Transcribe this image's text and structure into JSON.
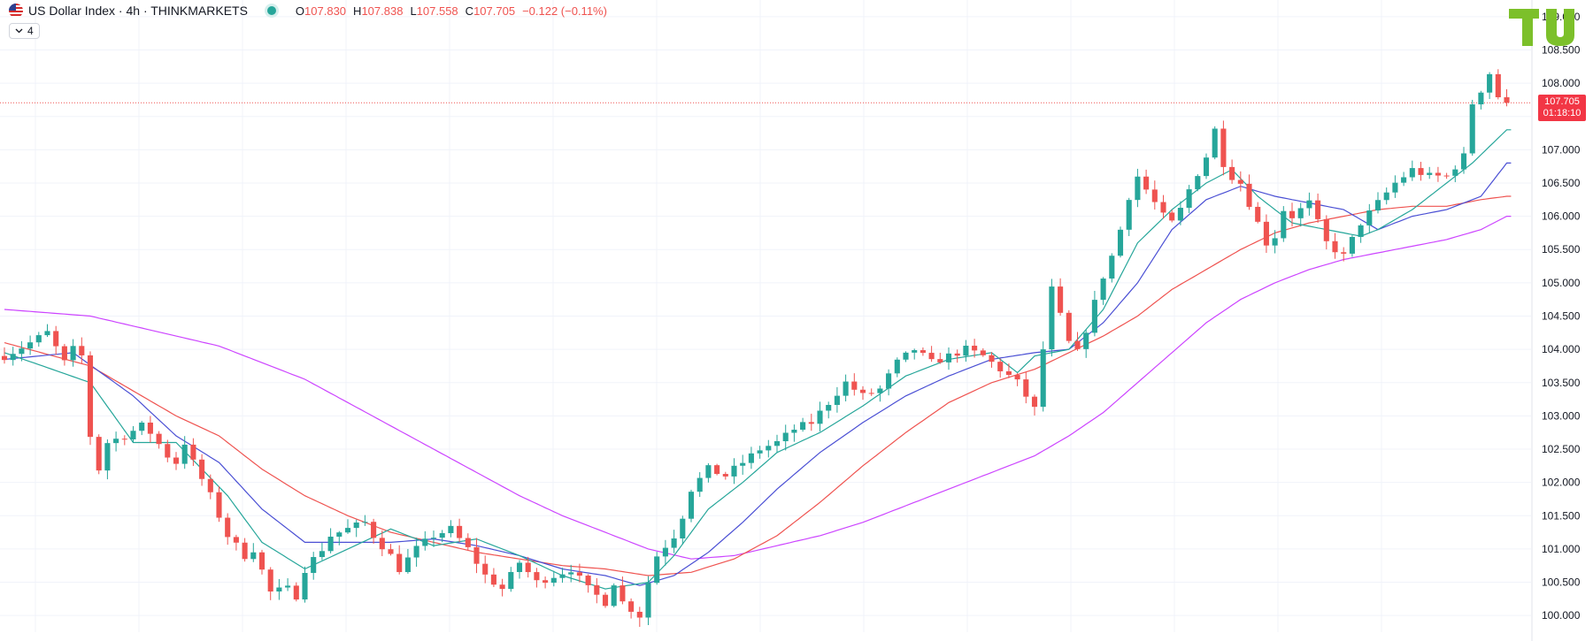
{
  "header": {
    "symbol_title": "US Dollar Index · 4h · THINKMARKETS",
    "ohlc": [
      {
        "key": "O",
        "value": "107.830"
      },
      {
        "key": "H",
        "value": "107.838"
      },
      {
        "key": "L",
        "value": "107.558"
      },
      {
        "key": "C",
        "value": "107.705"
      }
    ],
    "change": "−0.122 (−0.11%)",
    "studies_count": "4"
  },
  "price_badge": {
    "price": "107.705",
    "countdown": "01:18:10"
  },
  "colors": {
    "up": "#26a69a",
    "down": "#ef5350",
    "ma_fast": "#26a69a",
    "ma_mid": "#4a4fd4",
    "ma_slow": "#ef5350",
    "ma_long": "#cc44ff",
    "grid": "#f0f3fa",
    "badge": "#f23645",
    "logo": "#7cc02a"
  },
  "chart_data": {
    "type": "line",
    "ylim": [
      99.75,
      109.25
    ],
    "y_ticks": [
      "100.000",
      "100.500",
      "101.000",
      "101.500",
      "102.000",
      "102.500",
      "103.000",
      "103.500",
      "104.000",
      "104.500",
      "105.000",
      "105.500",
      "106.000",
      "106.500",
      "107.000",
      "107.500",
      "108.000",
      "108.500",
      "109.000"
    ],
    "y_tick_values": [
      100,
      100.5,
      101,
      101.5,
      102,
      102.5,
      103,
      103.5,
      104,
      104.5,
      105,
      105.5,
      106,
      106.5,
      107,
      107.5,
      108,
      108.5,
      109
    ],
    "last_price": 107.705,
    "price_path": [
      [
        0,
        103.9
      ],
      [
        3,
        104.1
      ],
      [
        5,
        104.25
      ],
      [
        7,
        103.8
      ],
      [
        8,
        104.0
      ],
      [
        9,
        103.9
      ],
      [
        10,
        102.7
      ],
      [
        11,
        102.2
      ],
      [
        12,
        102.6
      ],
      [
        14,
        102.7
      ],
      [
        16,
        102.85
      ],
      [
        17,
        102.75
      ],
      [
        19,
        102.4
      ],
      [
        20,
        102.3
      ],
      [
        21,
        102.6
      ],
      [
        22,
        102.3
      ],
      [
        24,
        101.8
      ],
      [
        26,
        101.2
      ],
      [
        28,
        100.9
      ],
      [
        29,
        101.0
      ],
      [
        31,
        100.35
      ],
      [
        33,
        100.4
      ],
      [
        34,
        100.3
      ],
      [
        35,
        100.7
      ],
      [
        37,
        101.0
      ],
      [
        38,
        101.2
      ],
      [
        40,
        101.3
      ],
      [
        42,
        101.4
      ],
      [
        43,
        101.2
      ],
      [
        45,
        100.9
      ],
      [
        46,
        100.7
      ],
      [
        48,
        101.0
      ],
      [
        50,
        101.2
      ],
      [
        52,
        101.3
      ],
      [
        54,
        101.0
      ],
      [
        56,
        100.6
      ],
      [
        58,
        100.4
      ],
      [
        60,
        100.8
      ],
      [
        62,
        100.5
      ],
      [
        64,
        100.6
      ],
      [
        66,
        100.7
      ],
      [
        68,
        100.4
      ],
      [
        70,
        100.2
      ],
      [
        71,
        100.5
      ],
      [
        72,
        100.2
      ],
      [
        73,
        100.1
      ],
      [
        74,
        100.0
      ],
      [
        75,
        100.5
      ],
      [
        76,
        100.9
      ],
      [
        78,
        101.2
      ],
      [
        79,
        101.5
      ],
      [
        80,
        101.9
      ],
      [
        82,
        102.2
      ],
      [
        84,
        102.1
      ],
      [
        86,
        102.3
      ],
      [
        88,
        102.5
      ],
      [
        90,
        102.6
      ],
      [
        92,
        102.8
      ],
      [
        94,
        102.9
      ],
      [
        96,
        103.2
      ],
      [
        98,
        103.5
      ],
      [
        100,
        103.3
      ],
      [
        102,
        103.4
      ],
      [
        104,
        103.8
      ],
      [
        106,
        104.0
      ],
      [
        108,
        103.8
      ],
      [
        110,
        103.9
      ],
      [
        112,
        104.0
      ],
      [
        114,
        103.9
      ],
      [
        116,
        103.7
      ],
      [
        118,
        103.5
      ],
      [
        119,
        103.3
      ],
      [
        120,
        103.1
      ],
      [
        121,
        104.0
      ],
      [
        122,
        104.9
      ],
      [
        123,
        104.5
      ],
      [
        124,
        104.1
      ],
      [
        125,
        103.95
      ],
      [
        126,
        104.3
      ],
      [
        127,
        104.7
      ],
      [
        128,
        105.1
      ],
      [
        129,
        105.4
      ],
      [
        130,
        105.8
      ],
      [
        131,
        106.3
      ],
      [
        132,
        106.6
      ],
      [
        133,
        106.4
      ],
      [
        134,
        106.2
      ],
      [
        135,
        106.0
      ],
      [
        136,
        105.9
      ],
      [
        137,
        106.1
      ],
      [
        138,
        106.4
      ],
      [
        140,
        106.9
      ],
      [
        141,
        107.3
      ],
      [
        142,
        106.8
      ],
      [
        143,
        106.6
      ],
      [
        144,
        106.5
      ],
      [
        145,
        106.2
      ],
      [
        146,
        105.9
      ],
      [
        147,
        105.6
      ],
      [
        148,
        105.7
      ],
      [
        149,
        106.1
      ],
      [
        150,
        106.0
      ],
      [
        152,
        106.2
      ],
      [
        154,
        105.6
      ],
      [
        156,
        105.4
      ],
      [
        158,
        105.9
      ],
      [
        160,
        106.2
      ],
      [
        162,
        106.5
      ],
      [
        164,
        106.7
      ],
      [
        166,
        106.6
      ],
      [
        168,
        106.6
      ],
      [
        170,
        106.9
      ],
      [
        171,
        107.7
      ],
      [
        172,
        107.9
      ],
      [
        173,
        108.15
      ],
      [
        174,
        107.8
      ],
      [
        175,
        107.705
      ]
    ],
    "ma_fast": [
      [
        0,
        103.95
      ],
      [
        10,
        103.5
      ],
      [
        15,
        102.6
      ],
      [
        20,
        102.6
      ],
      [
        26,
        101.8
      ],
      [
        30,
        101.1
      ],
      [
        35,
        100.7
      ],
      [
        40,
        101.0
      ],
      [
        45,
        101.3
      ],
      [
        50,
        101.05
      ],
      [
        55,
        101.15
      ],
      [
        60,
        100.9
      ],
      [
        65,
        100.6
      ],
      [
        70,
        100.4
      ],
      [
        75,
        100.5
      ],
      [
        78,
        100.9
      ],
      [
        82,
        101.6
      ],
      [
        86,
        102.0
      ],
      [
        90,
        102.45
      ],
      [
        95,
        102.75
      ],
      [
        100,
        103.15
      ],
      [
        105,
        103.6
      ],
      [
        110,
        103.85
      ],
      [
        115,
        103.95
      ],
      [
        118,
        103.65
      ],
      [
        120,
        103.9
      ],
      [
        124,
        104.0
      ],
      [
        128,
        104.6
      ],
      [
        132,
        105.6
      ],
      [
        136,
        106.1
      ],
      [
        140,
        106.5
      ],
      [
        143,
        106.7
      ],
      [
        146,
        106.3
      ],
      [
        150,
        105.9
      ],
      [
        154,
        105.8
      ],
      [
        158,
        105.7
      ],
      [
        160,
        105.8
      ],
      [
        164,
        106.1
      ],
      [
        168,
        106.5
      ],
      [
        171,
        106.8
      ],
      [
        175,
        107.3
      ]
    ],
    "ma_mid": [
      [
        0,
        103.85
      ],
      [
        8,
        103.95
      ],
      [
        15,
        103.3
      ],
      [
        20,
        102.7
      ],
      [
        25,
        102.3
      ],
      [
        30,
        101.6
      ],
      [
        35,
        101.1
      ],
      [
        40,
        101.1
      ],
      [
        45,
        101.1
      ],
      [
        50,
        101.15
      ],
      [
        55,
        101.05
      ],
      [
        60,
        100.9
      ],
      [
        65,
        100.7
      ],
      [
        70,
        100.6
      ],
      [
        74,
        100.45
      ],
      [
        78,
        100.6
      ],
      [
        82,
        100.95
      ],
      [
        86,
        101.4
      ],
      [
        90,
        101.9
      ],
      [
        95,
        102.45
      ],
      [
        100,
        102.9
      ],
      [
        105,
        103.3
      ],
      [
        110,
        103.6
      ],
      [
        115,
        103.85
      ],
      [
        120,
        103.95
      ],
      [
        124,
        104.0
      ],
      [
        128,
        104.4
      ],
      [
        132,
        105.0
      ],
      [
        136,
        105.8
      ],
      [
        140,
        106.25
      ],
      [
        144,
        106.45
      ],
      [
        148,
        106.3
      ],
      [
        152,
        106.2
      ],
      [
        156,
        106.1
      ],
      [
        160,
        105.8
      ],
      [
        164,
        106.0
      ],
      [
        168,
        106.1
      ],
      [
        172,
        106.3
      ],
      [
        175,
        106.8
      ]
    ],
    "ma_slow": [
      [
        0,
        104.1
      ],
      [
        10,
        103.75
      ],
      [
        20,
        103.0
      ],
      [
        25,
        102.7
      ],
      [
        30,
        102.2
      ],
      [
        35,
        101.8
      ],
      [
        40,
        101.5
      ],
      [
        45,
        101.25
      ],
      [
        50,
        101.1
      ],
      [
        55,
        100.95
      ],
      [
        60,
        100.85
      ],
      [
        65,
        100.75
      ],
      [
        70,
        100.7
      ],
      [
        75,
        100.6
      ],
      [
        80,
        100.65
      ],
      [
        85,
        100.85
      ],
      [
        90,
        101.2
      ],
      [
        95,
        101.7
      ],
      [
        100,
        102.25
      ],
      [
        105,
        102.75
      ],
      [
        110,
        103.2
      ],
      [
        115,
        103.5
      ],
      [
        120,
        103.7
      ],
      [
        124,
        103.95
      ],
      [
        128,
        104.2
      ],
      [
        132,
        104.5
      ],
      [
        136,
        104.9
      ],
      [
        140,
        105.2
      ],
      [
        144,
        105.5
      ],
      [
        148,
        105.75
      ],
      [
        152,
        105.9
      ],
      [
        156,
        106.0
      ],
      [
        160,
        106.1
      ],
      [
        164,
        106.15
      ],
      [
        168,
        106.15
      ],
      [
        172,
        106.25
      ],
      [
        175,
        106.3
      ]
    ],
    "ma_long": [
      [
        0,
        104.6
      ],
      [
        10,
        104.5
      ],
      [
        20,
        104.2
      ],
      [
        25,
        104.05
      ],
      [
        30,
        103.8
      ],
      [
        35,
        103.55
      ],
      [
        40,
        103.2
      ],
      [
        45,
        102.85
      ],
      [
        50,
        102.5
      ],
      [
        55,
        102.15
      ],
      [
        60,
        101.8
      ],
      [
        65,
        101.5
      ],
      [
        70,
        101.25
      ],
      [
        75,
        101.0
      ],
      [
        80,
        100.85
      ],
      [
        85,
        100.9
      ],
      [
        90,
        101.05
      ],
      [
        95,
        101.2
      ],
      [
        100,
        101.4
      ],
      [
        105,
        101.65
      ],
      [
        110,
        101.9
      ],
      [
        115,
        102.15
      ],
      [
        120,
        102.4
      ],
      [
        124,
        102.7
      ],
      [
        128,
        103.05
      ],
      [
        132,
        103.5
      ],
      [
        136,
        103.95
      ],
      [
        140,
        104.4
      ],
      [
        144,
        104.75
      ],
      [
        148,
        105.0
      ],
      [
        152,
        105.2
      ],
      [
        156,
        105.35
      ],
      [
        160,
        105.45
      ],
      [
        164,
        105.55
      ],
      [
        168,
        105.65
      ],
      [
        172,
        105.8
      ],
      [
        175,
        106.0
      ]
    ]
  }
}
